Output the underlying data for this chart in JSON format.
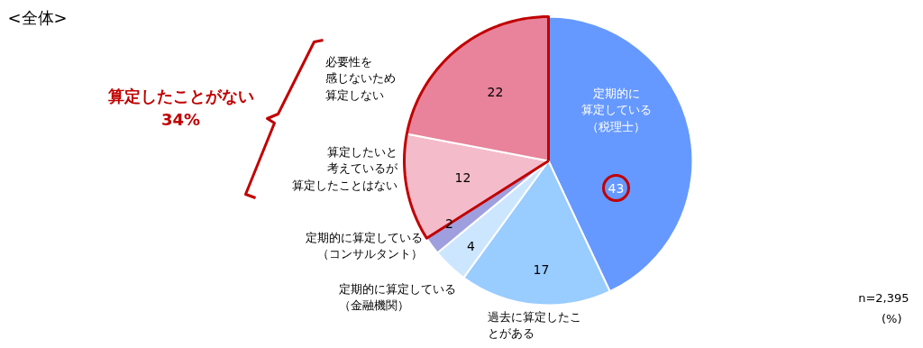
{
  "chart_data": {
    "type": "pie",
    "title": "<全体>",
    "categories": [
      "定期的に算定している（税理士）",
      "過去に算定したことがある",
      "定期的に算定している（金融機関）",
      "定期的に算定している（コンサルタント）",
      "算定したいと考えているが算定したことはない",
      "必要性を感じないため算定しない"
    ],
    "values": [
      43,
      17,
      4,
      2,
      12,
      22
    ],
    "colors": [
      "#6699ff",
      "#99ccff",
      "#cce6ff",
      "#9f9fdf",
      "#f4bccb",
      "#e8839b"
    ],
    "data_labels": true,
    "annotations": [
      "算定したことがない\n34%",
      "n=2,395",
      "(%)"
    ]
  }
}
